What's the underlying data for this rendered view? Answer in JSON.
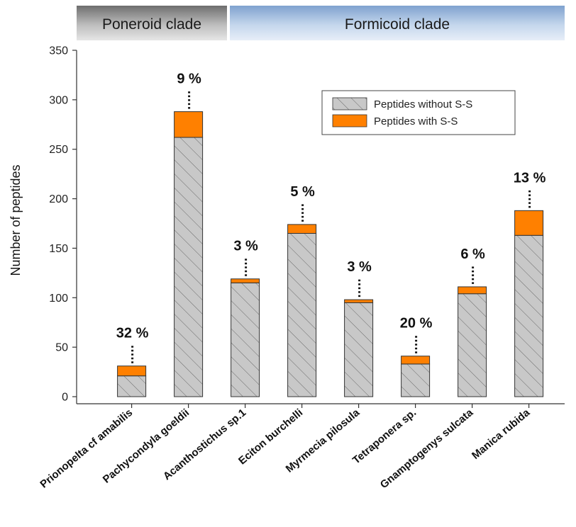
{
  "clades": [
    {
      "name": "Poneroid clade",
      "style": "dark",
      "span": [
        0,
        0
      ]
    },
    {
      "name": "Formicoid clade",
      "style": "blue",
      "span": [
        1,
        7
      ]
    }
  ],
  "colors": {
    "without_ss_fill": "#c8c8c8",
    "with_ss_fill": "#ff8000",
    "hatch": "#6a6a6a",
    "axis": "#333333",
    "dots": "#111111"
  },
  "chart_data": {
    "type": "bar",
    "stacked": true,
    "title": "",
    "xlabel": "",
    "ylabel": "Number of peptides",
    "ylim": [
      0,
      350
    ],
    "yticks": [
      0,
      50,
      100,
      150,
      200,
      250,
      300,
      350
    ],
    "categories": [
      "Prionopelta cf amabilis",
      "Pachycondyla goeldii",
      "Acanthostichus sp.1",
      "Eciton burchelli",
      "Myrmecia pilosula",
      "Tetraponera sp.",
      "Gnamptogenys sulcata",
      "Manica rubida"
    ],
    "series": [
      {
        "name": "Peptides without S-S",
        "values": [
          21,
          262,
          115,
          165,
          95,
          33,
          104,
          163
        ]
      },
      {
        "name": "Peptides with S-S",
        "values": [
          10,
          26,
          4,
          9,
          3,
          8,
          7,
          25
        ]
      }
    ],
    "annotations": [
      "32 %",
      "9 %",
      "3 %",
      "5 %",
      "3 %",
      "20 %",
      "6 %",
      "13 %"
    ],
    "legend_position": "top-right",
    "grid": false
  }
}
